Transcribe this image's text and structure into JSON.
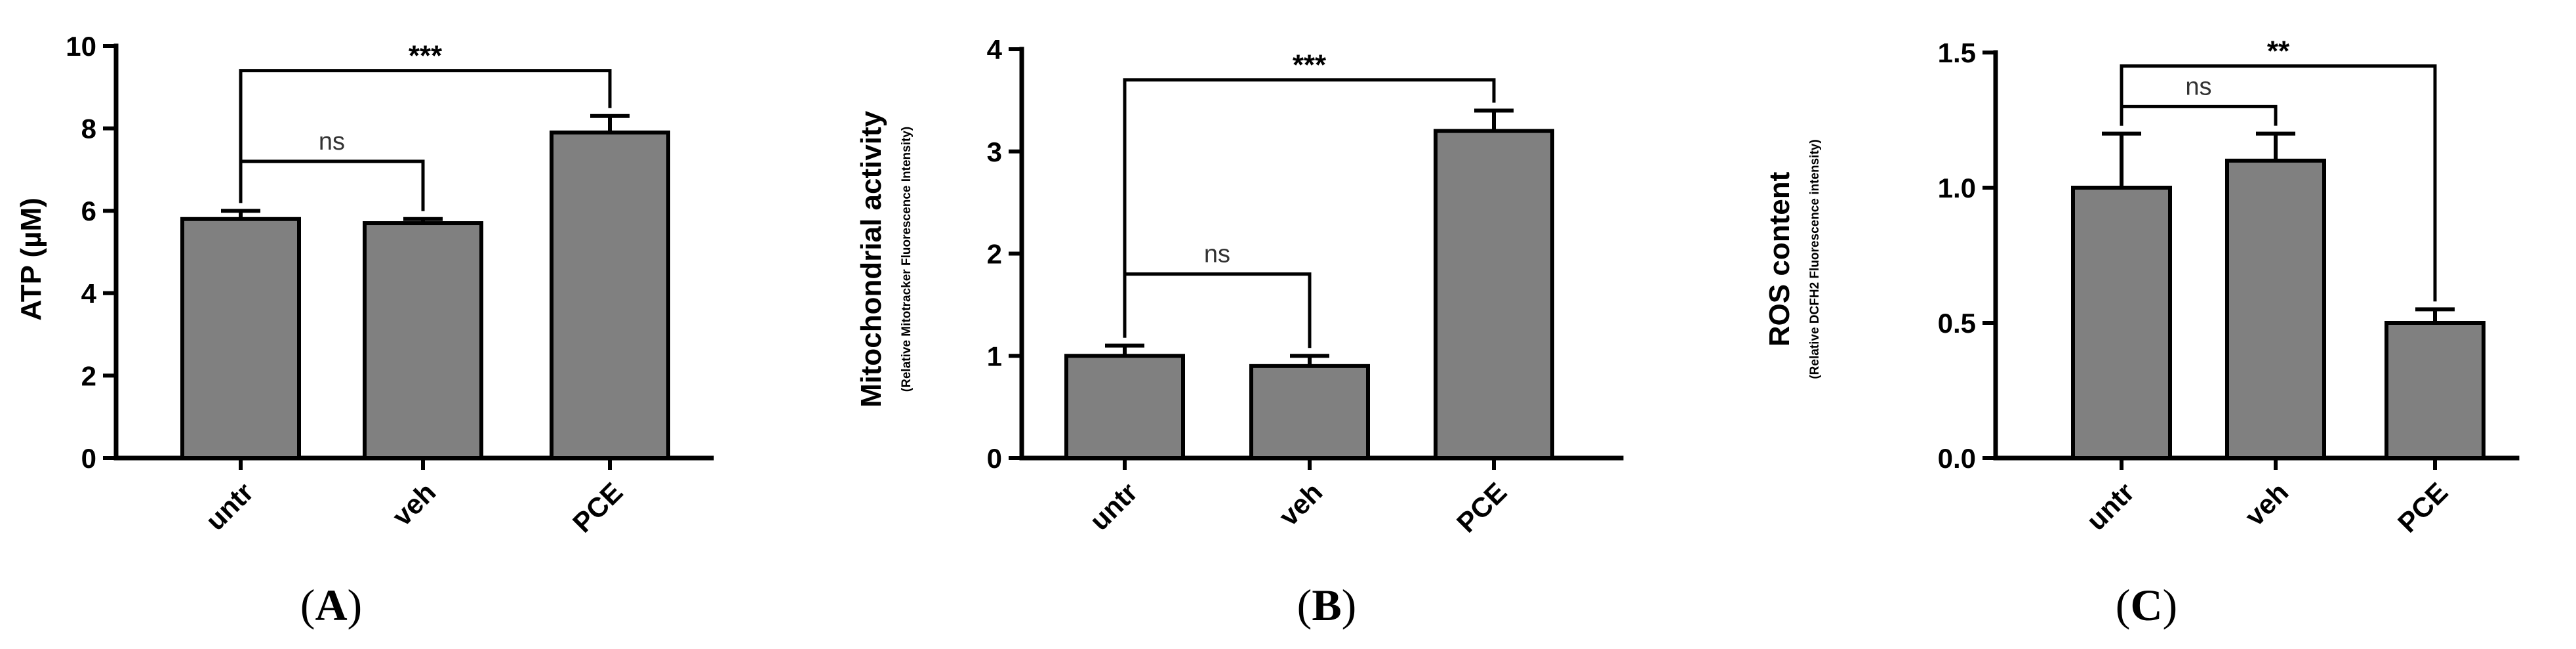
{
  "bar_color": "#808080",
  "chart_data": [
    {
      "type": "bar",
      "panel_label": "A",
      "categories": [
        "untr",
        "veh",
        "PCE"
      ],
      "values": [
        5.8,
        5.7,
        7.9
      ],
      "errors": [
        0.2,
        0.1,
        0.4
      ],
      "ylabel": "ATP (µM)",
      "ylabel_sub": "",
      "ylim": [
        0,
        10
      ],
      "yticks": [
        0,
        2,
        4,
        6,
        8,
        10
      ],
      "ytick_labels": [
        "0",
        "2",
        "4",
        "6",
        "8",
        "10"
      ],
      "grid": false,
      "significance": [
        {
          "label": "***",
          "from": 0,
          "to": 2,
          "level": 9.4
        },
        {
          "label": "ns",
          "from": 0,
          "to": 1,
          "level": 7.2
        }
      ]
    },
    {
      "type": "bar",
      "panel_label": "B",
      "categories": [
        "untr",
        "veh",
        "PCE"
      ],
      "values": [
        1.0,
        0.9,
        3.2
      ],
      "errors": [
        0.1,
        0.1,
        0.2
      ],
      "ylabel": "Mitochondrial activity",
      "ylabel_sub": "(Relative Mitotracker Fluorescence Intensity)",
      "ylim": [
        0,
        4
      ],
      "yticks": [
        0,
        1,
        2,
        3,
        4
      ],
      "ytick_labels": [
        "0",
        "1",
        "2",
        "3",
        "4"
      ],
      "grid": false,
      "significance": [
        {
          "label": "***",
          "from": 0,
          "to": 2,
          "level": 3.7
        },
        {
          "label": "ns",
          "from": 0,
          "to": 1,
          "level": 1.8
        }
      ]
    },
    {
      "type": "bar",
      "panel_label": "C",
      "categories": [
        "untr",
        "veh",
        "PCE"
      ],
      "values": [
        1.0,
        1.1,
        0.5
      ],
      "errors": [
        0.2,
        0.1,
        0.05
      ],
      "ylabel": "ROS content",
      "ylabel_sub": "(Relative DCFH2 Fluorescence intensity)",
      "ylim": [
        0,
        1.5
      ],
      "yticks": [
        0,
        0.5,
        1.0,
        1.5
      ],
      "ytick_labels": [
        "0.0",
        "0.5",
        "1.0",
        "1.5"
      ],
      "grid": false,
      "significance": [
        {
          "label": "**",
          "from": 0,
          "to": 2,
          "level": 1.45
        },
        {
          "label": "ns",
          "from": 0,
          "to": 1,
          "level": 1.3
        }
      ]
    }
  ]
}
